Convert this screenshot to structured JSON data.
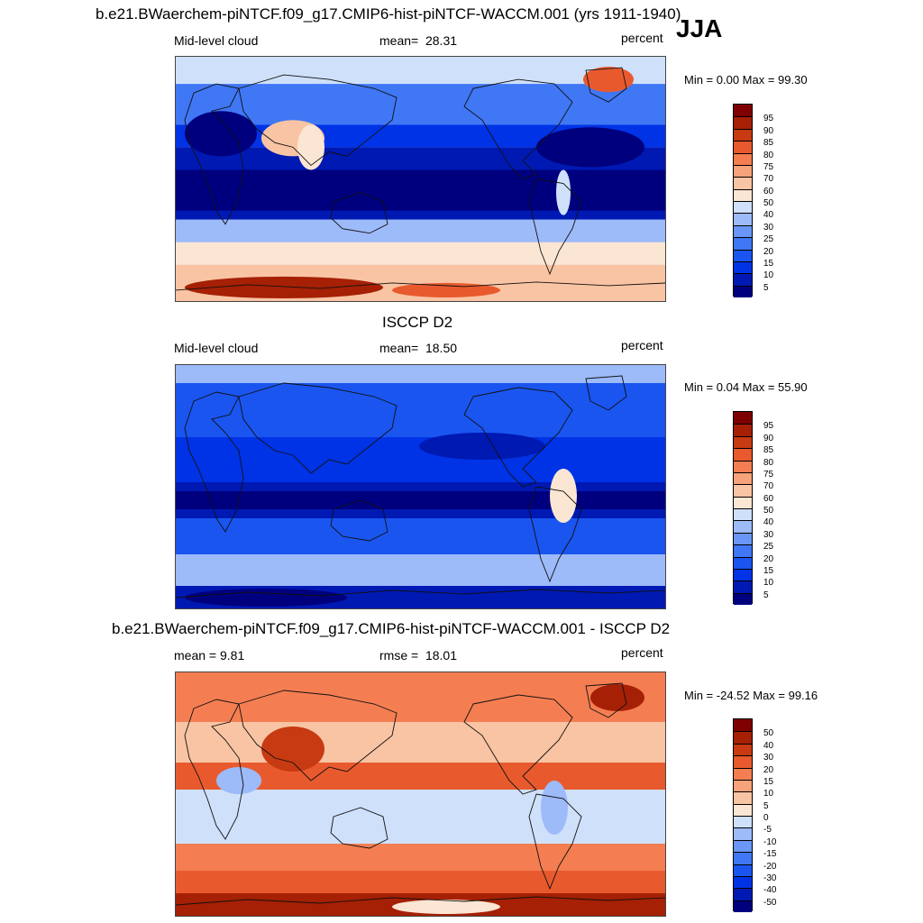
{
  "header": {
    "main_title": "b.e21.BWaerchem-piNTCF.f09_g17.CMIP6-hist-piNTCF-WACCM.001 (yrs 1911-1940)",
    "season": "JJA"
  },
  "panels": [
    {
      "id": "model",
      "subtitle_left": "Mid-level cloud",
      "stat_label": "mean=",
      "stat_value": "28.31",
      "units": "percent",
      "minmax": "Min =   0.00 Max =  99.30",
      "colorbar_labels": [
        "95",
        "90",
        "85",
        "80",
        "75",
        "70",
        "60",
        "50",
        "40",
        "30",
        "25",
        "20",
        "15",
        "10",
        "5"
      ]
    },
    {
      "id": "obs",
      "title": "ISCCP D2",
      "subtitle_left": "Mid-level cloud",
      "stat_label": "mean=",
      "stat_value": "18.50",
      "units": "percent",
      "minmax": "Min =   0.04 Max =  55.90",
      "colorbar_labels": [
        "95",
        "90",
        "85",
        "80",
        "75",
        "70",
        "60",
        "50",
        "40",
        "30",
        "25",
        "20",
        "15",
        "10",
        "5"
      ]
    },
    {
      "id": "diff",
      "title": "b.e21.BWaerchem-piNTCF.f09_g17.CMIP6-hist-piNTCF-WACCM.001 - ISCCP D2",
      "subtitle_left": "mean =   9.81",
      "stat_label": "rmse =",
      "stat_value": "18.01",
      "units": "percent",
      "minmax": "Min = -24.52 Max =  99.16",
      "colorbar_labels": [
        "50",
        "40",
        "30",
        "20",
        "15",
        "10",
        "5",
        "0",
        "-5",
        "-10",
        "-15",
        "-20",
        "-30",
        "-40",
        "-50"
      ]
    }
  ],
  "colors": {
    "scale": [
      "#00007f",
      "#0019b3",
      "#0033e6",
      "#1a55f0",
      "#3f77f5",
      "#6a97f7",
      "#9dbaf9",
      "#cfe0fb",
      "#fbe6d3",
      "#f9c4a3",
      "#f7a27a",
      "#f47e52",
      "#e85a2e",
      "#c73a12",
      "#a52005",
      "#7f0000"
    ]
  }
}
